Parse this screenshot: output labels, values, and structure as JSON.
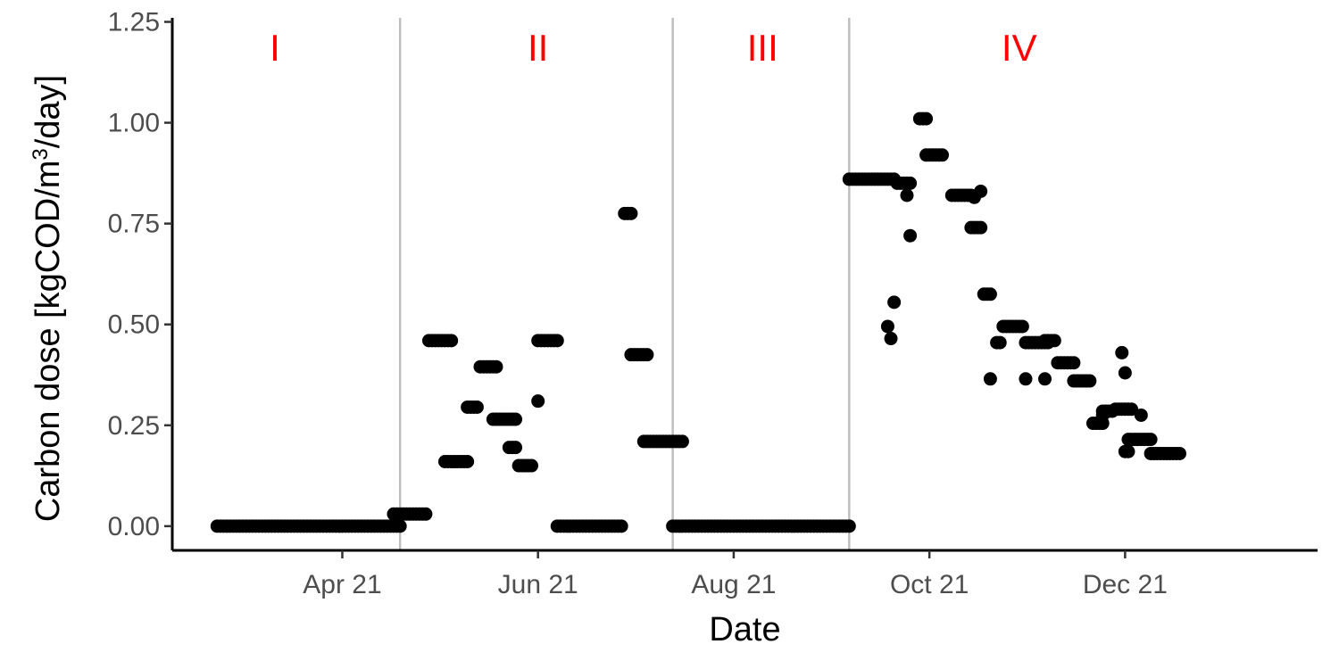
{
  "chart_data": {
    "type": "scatter",
    "xlabel": "Date",
    "ylabel": {
      "main": "Carbon dose [kgCOD/m",
      "superscript": "3",
      "unit_tail": "/day]"
    },
    "x_axis": {
      "type": "date",
      "range": [
        "2021-02-07",
        "2022-01-30"
      ],
      "ticks": [
        {
          "date": "2021-04-01",
          "label": "Apr 21"
        },
        {
          "date": "2021-06-01",
          "label": "Jun 21"
        },
        {
          "date": "2021-08-01",
          "label": "Aug 21"
        },
        {
          "date": "2021-10-01",
          "label": "Oct 21"
        },
        {
          "date": "2021-12-01",
          "label": "Dec 21"
        }
      ]
    },
    "y_axis": {
      "range": [
        -0.06,
        1.26
      ],
      "ticks": [
        {
          "value": 0,
          "label": "0.00"
        },
        {
          "value": 0.25,
          "label": "0.25"
        },
        {
          "value": 0.5,
          "label": "0.50"
        },
        {
          "value": 0.75,
          "label": "0.75"
        },
        {
          "value": 1.0,
          "label": "1.00"
        },
        {
          "value": 1.25,
          "label": "1.25"
        }
      ]
    },
    "grid": false,
    "phase_boundaries": [
      "2021-04-19",
      "2021-07-13",
      "2021-09-06"
    ],
    "phase_labels": [
      {
        "label": "I",
        "date": "2021-03-11"
      },
      {
        "label": "II",
        "date": "2021-06-01"
      },
      {
        "label": "III",
        "date": "2021-08-10"
      },
      {
        "label": "IV",
        "date": "2021-10-29"
      }
    ],
    "colors": {
      "points": "#000000",
      "phase_line": "#bebebe",
      "phase_label": "#ff0000",
      "axis": "#000000"
    },
    "segments": [
      {
        "start": "2021-02-21",
        "end": "2021-04-19",
        "y": 0.0
      },
      {
        "start": "2021-04-17",
        "end": "2021-04-27",
        "y": 0.03
      },
      {
        "start": "2021-04-28",
        "end": "2021-05-05",
        "y": 0.46
      },
      {
        "start": "2021-05-03",
        "end": "2021-05-10",
        "y": 0.16
      },
      {
        "start": "2021-05-10",
        "end": "2021-05-13",
        "y": 0.295
      },
      {
        "start": "2021-05-14",
        "end": "2021-05-19",
        "y": 0.395
      },
      {
        "start": "2021-05-18",
        "end": "2021-05-25",
        "y": 0.265
      },
      {
        "start": "2021-05-23",
        "end": "2021-05-25",
        "y": 0.195
      },
      {
        "start": "2021-05-26",
        "end": "2021-05-30",
        "y": 0.15
      },
      {
        "start": "2021-06-01",
        "end": "2021-06-07",
        "y": 0.46
      },
      {
        "start": "2021-06-07",
        "end": "2021-06-27",
        "y": 0.0
      },
      {
        "start": "2021-06-28",
        "end": "2021-06-30",
        "y": 0.775
      },
      {
        "start": "2021-06-30",
        "end": "2021-07-05",
        "y": 0.425
      },
      {
        "start": "2021-07-04",
        "end": "2021-07-16",
        "y": 0.21
      },
      {
        "start": "2021-07-13",
        "end": "2021-09-06",
        "y": 0.0
      },
      {
        "start": "2021-09-06",
        "end": "2021-09-20",
        "y": 0.86
      },
      {
        "start": "2021-09-21",
        "end": "2021-09-25",
        "y": 0.85
      },
      {
        "start": "2021-09-28",
        "end": "2021-09-30",
        "y": 1.01
      },
      {
        "start": "2021-09-30",
        "end": "2021-10-05",
        "y": 0.92
      },
      {
        "start": "2021-10-08",
        "end": "2021-10-14",
        "y": 0.82
      },
      {
        "start": "2021-10-14",
        "end": "2021-10-17",
        "y": 0.74
      },
      {
        "start": "2021-10-18",
        "end": "2021-10-20",
        "y": 0.575
      },
      {
        "start": "2021-10-22",
        "end": "2021-10-23",
        "y": 0.455
      },
      {
        "start": "2021-10-24",
        "end": "2021-10-30",
        "y": 0.495
      },
      {
        "start": "2021-10-31",
        "end": "2021-11-07",
        "y": 0.455
      },
      {
        "start": "2021-11-06",
        "end": "2021-11-09",
        "y": 0.46
      },
      {
        "start": "2021-11-10",
        "end": "2021-11-15",
        "y": 0.405
      },
      {
        "start": "2021-11-15",
        "end": "2021-11-20",
        "y": 0.36
      },
      {
        "start": "2021-11-21",
        "end": "2021-11-24",
        "y": 0.255
      },
      {
        "start": "2021-11-24",
        "end": "2021-11-27",
        "y": 0.285
      },
      {
        "start": "2021-11-28",
        "end": "2021-12-03",
        "y": 0.29
      },
      {
        "start": "2021-12-01",
        "end": "2021-12-02",
        "y": 0.185
      },
      {
        "start": "2021-12-02",
        "end": "2021-12-09",
        "y": 0.215
      },
      {
        "start": "2021-12-09",
        "end": "2021-12-18",
        "y": 0.18
      }
    ],
    "points": [
      {
        "date": "2021-09-18",
        "y": 0.495
      },
      {
        "date": "2021-09-19",
        "y": 0.465
      },
      {
        "date": "2021-09-20",
        "y": 0.555
      },
      {
        "date": "2021-09-24",
        "y": 0.82
      },
      {
        "date": "2021-09-25",
        "y": 0.72
      },
      {
        "date": "2021-10-15",
        "y": 0.815
      },
      {
        "date": "2021-10-17",
        "y": 0.83
      },
      {
        "date": "2021-10-20",
        "y": 0.365
      },
      {
        "date": "2021-10-31",
        "y": 0.365
      },
      {
        "date": "2021-11-06",
        "y": 0.365
      },
      {
        "date": "2021-11-24",
        "y": 0.275
      },
      {
        "date": "2021-11-30",
        "y": 0.43
      },
      {
        "date": "2021-12-01",
        "y": 0.38
      },
      {
        "date": "2021-12-06",
        "y": 0.275
      },
      {
        "date": "2021-06-01",
        "y": 0.31
      }
    ]
  }
}
